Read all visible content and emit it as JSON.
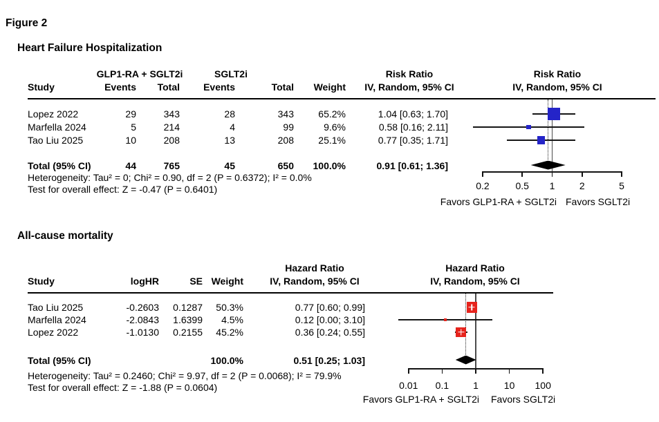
{
  "figure": {
    "label": "Figure 2"
  },
  "panels": [
    {
      "title": "Heart Failure Hospitalization",
      "group1_label": "GLP1-RA + SGLT2i",
      "group2_label": "SGLT2i",
      "effect_label": "Risk Ratio",
      "model_label": "IV, Random, 95% CI",
      "columns": {
        "study": "Study",
        "events": "Events",
        "total": "Total",
        "events2": "Events",
        "total2": "Total",
        "weight": "Weight"
      },
      "rows": [
        {
          "study": "Lopez 2022",
          "events1": "29",
          "total1": "343",
          "events2": "28",
          "total2": "343",
          "weight": "65.2%",
          "estimate": "1.04 [0.63; 1.70]",
          "est": 1.04,
          "lo": 0.63,
          "hi": 1.7,
          "w": 65.2
        },
        {
          "study": "Marfella 2024",
          "events1": "5",
          "total1": "214",
          "events2": "4",
          "total2": "99",
          "weight": "9.6%",
          "estimate": "0.58 [0.16; 2.11]",
          "est": 0.58,
          "lo": 0.16,
          "hi": 2.11,
          "w": 9.6
        },
        {
          "study": "Tao Liu 2025",
          "events1": "10",
          "total1": "208",
          "events2": "13",
          "total2": "208",
          "weight": "25.1%",
          "estimate": "0.77 [0.35; 1.71]",
          "est": 0.77,
          "lo": 0.35,
          "hi": 1.71,
          "w": 25.1
        }
      ],
      "total": {
        "label": "Total (95% CI)",
        "events1": "44",
        "total1": "765",
        "events2": "45",
        "total2": "650",
        "weight": "100.0%",
        "estimate": "0.91 [0.61; 1.36]",
        "est": 0.91,
        "lo": 0.61,
        "hi": 1.36
      },
      "heterogeneity": "Heterogeneity: Tau² = 0; Chi² = 0.90, df = 2 (P = 0.6372); I² = 0.0%",
      "overall_test": "Test for overall effect: Z = -0.47 (P = 0.6401)",
      "axis_ticks": [
        "0.2",
        "0.5",
        "1",
        "2",
        "5"
      ],
      "favors_left": "Favors GLP1-RA + SGLT2i",
      "favors_right": "Favors SGLT2i",
      "square_color": "#2424C8"
    },
    {
      "title": "All-cause mortality",
      "effect_label": "Hazard Ratio",
      "model_label": "IV, Random, 95% CI",
      "columns": {
        "study": "Study",
        "loghr": "logHR",
        "se": "SE",
        "weight": "Weight"
      },
      "rows": [
        {
          "study": "Tao Liu 2025",
          "loghr": "-0.2603",
          "se": "0.1287",
          "weight": "50.3%",
          "estimate": "0.77 [0.60; 0.99]",
          "est": 0.77,
          "lo": 0.6,
          "hi": 0.99,
          "w": 50.3
        },
        {
          "study": "Marfella 2024",
          "loghr": "-2.0843",
          "se": "1.6399",
          "weight": "4.5%",
          "estimate": "0.12 [0.00; 3.10]",
          "est": 0.124,
          "lo": 0.005,
          "hi": 3.1,
          "w": 4.5
        },
        {
          "study": "Lopez 2022",
          "loghr": "-1.0130",
          "se": "0.2155",
          "weight": "45.2%",
          "estimate": "0.36 [0.24; 0.55]",
          "est": 0.363,
          "lo": 0.238,
          "hi": 0.554,
          "w": 45.2
        }
      ],
      "total": {
        "label": "Total (95% CI)",
        "weight": "100.0%",
        "estimate": "0.51 [0.25; 1.03]",
        "est": 0.51,
        "lo": 0.25,
        "hi": 1.03
      },
      "heterogeneity": "Heterogeneity: Tau² = 0.2460; Chi² = 9.97, df = 2 (P = 0.0068); I² = 79.9%",
      "overall_test": "Test for overall effect: Z = -1.88 (P = 0.0604)",
      "axis_ticks": [
        "0.01",
        "0.1",
        "1",
        "10",
        "100"
      ],
      "favors_left": "Favors GLP1-RA + SGLT2i",
      "favors_right": "Favors SGLT2i",
      "square_color": "#E6231C"
    }
  ],
  "chart_data": [
    {
      "type": "forest",
      "title": "Heart Failure Hospitalization",
      "effect_measure": "Risk Ratio",
      "model": "IV, Random, 95% CI",
      "x_scale": "log",
      "x_ticks": [
        0.2,
        0.5,
        1,
        2,
        5
      ],
      "studies": [
        {
          "name": "Lopez 2022",
          "events_glp1_sglt2i": 29,
          "total_glp1_sglt2i": 343,
          "events_sglt2i": 28,
          "total_sglt2i": 343,
          "weight_pct": 65.2,
          "est": 1.04,
          "ci": [
            0.63,
            1.7
          ]
        },
        {
          "name": "Marfella 2024",
          "events_glp1_sglt2i": 5,
          "total_glp1_sglt2i": 214,
          "events_sglt2i": 4,
          "total_sglt2i": 99,
          "weight_pct": 9.6,
          "est": 0.58,
          "ci": [
            0.16,
            2.11
          ]
        },
        {
          "name": "Tao Liu 2025",
          "events_glp1_sglt2i": 10,
          "total_glp1_sglt2i": 208,
          "events_sglt2i": 13,
          "total_sglt2i": 208,
          "weight_pct": 25.1,
          "est": 0.77,
          "ci": [
            0.35,
            1.71
          ]
        }
      ],
      "pooled": {
        "events_glp1_sglt2i": 44,
        "total_glp1_sglt2i": 765,
        "events_sglt2i": 45,
        "total_sglt2i": 650,
        "weight_pct": 100.0,
        "est": 0.91,
        "ci": [
          0.61,
          1.36
        ]
      },
      "heterogeneity": {
        "tau2": 0,
        "chi2": 0.9,
        "df": 2,
        "p": 0.6372,
        "i2_pct": 0.0
      },
      "overall_effect": {
        "z": -0.47,
        "p": 0.6401
      },
      "xlabel_left": "Favors GLP1-RA + SGLT2i",
      "xlabel_right": "Favors SGLT2i"
    },
    {
      "type": "forest",
      "title": "All-cause mortality",
      "effect_measure": "Hazard Ratio",
      "model": "IV, Random, 95% CI",
      "x_scale": "log",
      "x_ticks": [
        0.01,
        0.1,
        1,
        10,
        100
      ],
      "studies": [
        {
          "name": "Tao Liu 2025",
          "logHR": -0.2603,
          "SE": 0.1287,
          "weight_pct": 50.3,
          "est": 0.77,
          "ci": [
            0.6,
            0.99
          ]
        },
        {
          "name": "Marfella 2024",
          "logHR": -2.0843,
          "SE": 1.6399,
          "weight_pct": 4.5,
          "est": 0.12,
          "ci": [
            0.0,
            3.1
          ]
        },
        {
          "name": "Lopez 2022",
          "logHR": -1.013,
          "SE": 0.2155,
          "weight_pct": 45.2,
          "est": 0.36,
          "ci": [
            0.24,
            0.55
          ]
        }
      ],
      "pooled": {
        "weight_pct": 100.0,
        "est": 0.51,
        "ci": [
          0.25,
          1.03
        ]
      },
      "heterogeneity": {
        "tau2": 0.246,
        "chi2": 9.97,
        "df": 2,
        "p": 0.0068,
        "i2_pct": 79.9
      },
      "overall_effect": {
        "z": -1.88,
        "p": 0.0604
      },
      "xlabel_left": "Favors GLP1-RA + SGLT2i",
      "xlabel_right": "Favors SGLT2i"
    }
  ]
}
